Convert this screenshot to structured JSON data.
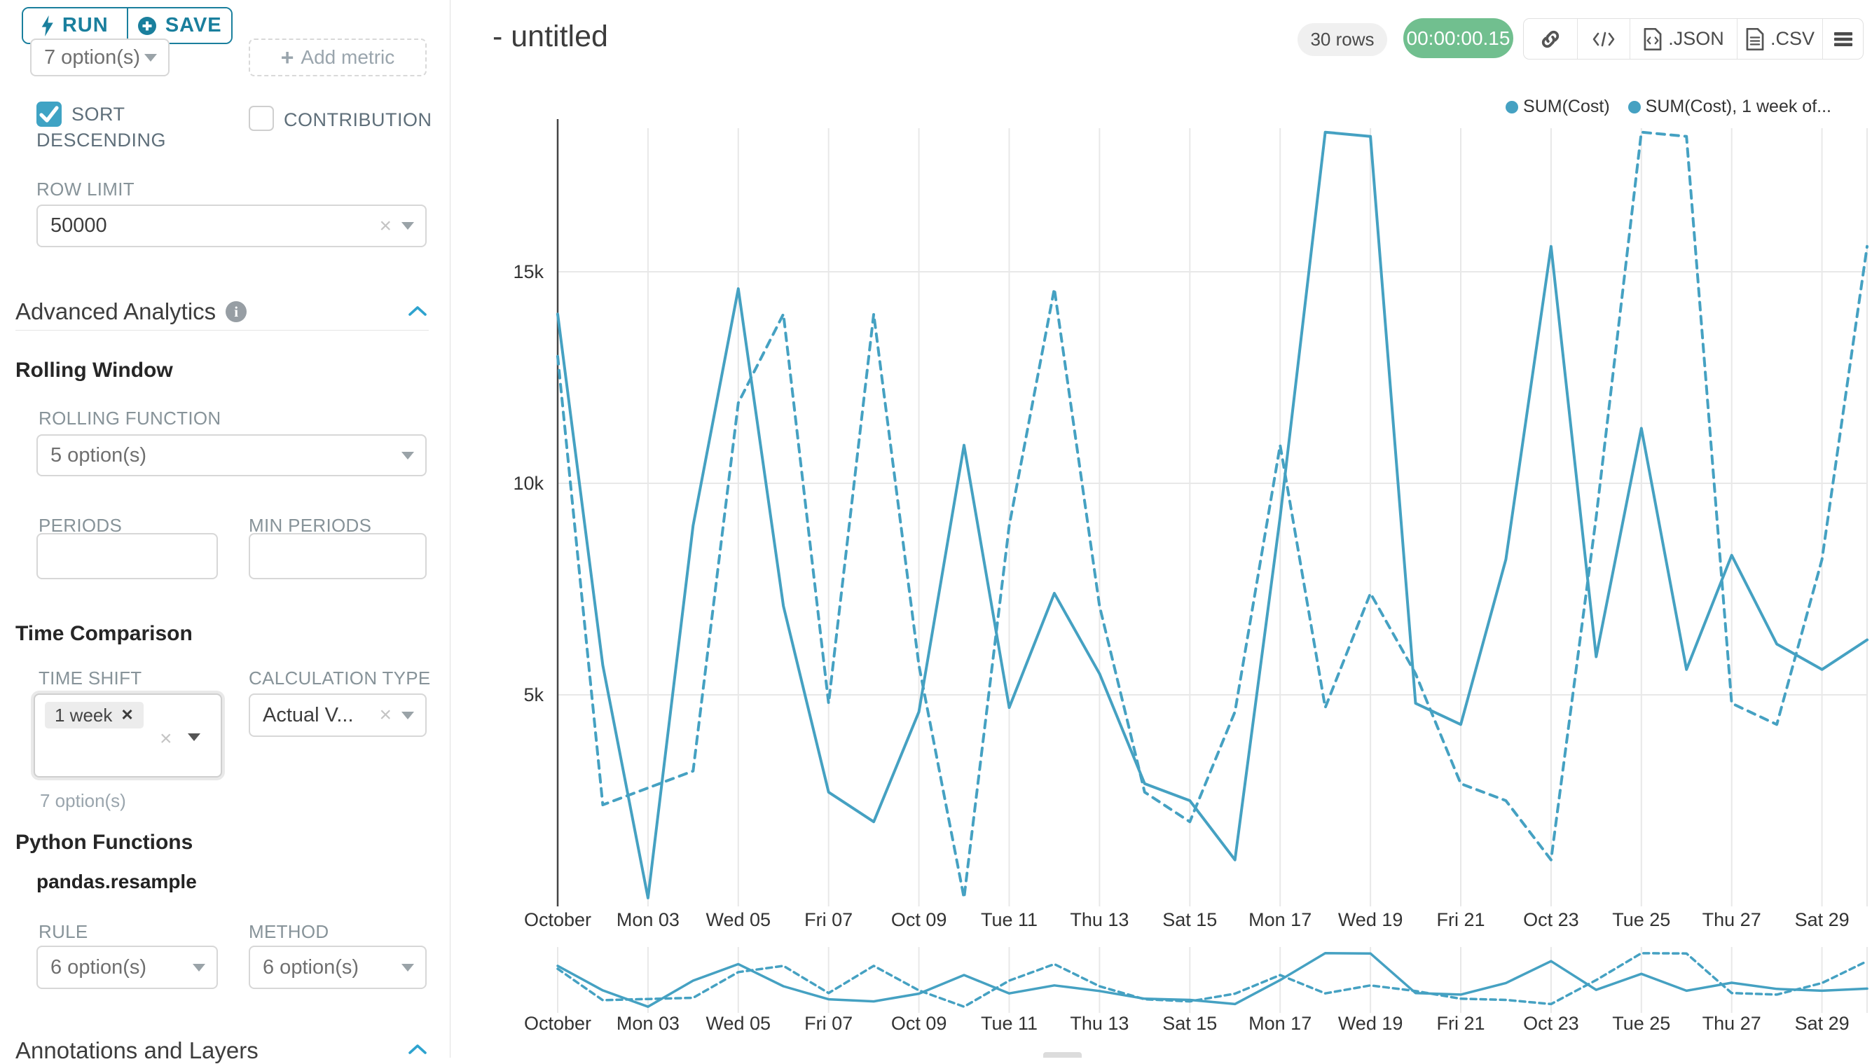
{
  "panel": {
    "run_label": "RUN",
    "save_label": "SAVE",
    "metric_value": "7 option(s)",
    "add_metric_label": "Add metric",
    "sort_label_line1": "SORT",
    "sort_label_line2": "DESCENDING",
    "contribution_label": "CONTRIBUTION",
    "row_limit_label": "ROW LIMIT",
    "row_limit_value": "50000",
    "advanced_analytics_title": "Advanced Analytics",
    "rolling_window_title": "Rolling Window",
    "rolling_function_label": "ROLLING FUNCTION",
    "rolling_function_value": "5 option(s)",
    "periods_label": "PERIODS",
    "min_periods_label": "MIN PERIODS",
    "time_comparison_title": "Time Comparison",
    "time_shift_label": "TIME SHIFT",
    "time_shift_tag": "1 week",
    "time_shift_helper": "7 option(s)",
    "calculation_type_label": "CALCULATION TYPE",
    "calculation_type_value": "Actual V...",
    "python_functions_title": "Python Functions",
    "resample_label": "pandas.resample",
    "rule_label": "RULE",
    "rule_value": "6 option(s)",
    "method_label": "METHOD",
    "method_value": "6 option(s)",
    "annotations_title": "Annotations and Layers"
  },
  "header": {
    "title": "- untitled",
    "rows_badge": "30 rows",
    "timer": "00:00:00.15",
    "export_json": ".JSON",
    "export_csv": ".CSV"
  },
  "legend": [
    {
      "label": "SUM(Cost)"
    },
    {
      "label": "SUM(Cost), 1 week of..."
    }
  ],
  "colors": {
    "accent": "#1a7f9d",
    "line": "#45a1c2",
    "timer_green": "#71bf8f",
    "checkbox": "#3fa3c4",
    "chevron": "#2ea3cf",
    "grid": "#e8e8e8",
    "axis": "#454545"
  },
  "chart_data": {
    "type": "line",
    "title": "- untitled",
    "x_tick_labels": [
      "October",
      "Mon 03",
      "Wed 05",
      "Fri 07",
      "Oct 09",
      "Tue 11",
      "Thu 13",
      "Sat 15",
      "Mon 17",
      "Wed 19",
      "Fri 21",
      "Oct 23",
      "Tue 25",
      "Thu 27",
      "Sat 29"
    ],
    "y_tick_labels": [
      "5k",
      "10k",
      "15k"
    ],
    "y_tick_values": [
      5,
      10,
      15
    ],
    "ylim": [
      0,
      18.4
    ],
    "unit": "thousands",
    "grid": true,
    "legend_position": "top-right",
    "series": [
      {
        "name": "SUM(Cost)",
        "style": "solid",
        "values": [
          14.0,
          5.7,
          0.2,
          9.0,
          14.6,
          7.1,
          2.7,
          2.0,
          4.6,
          10.9,
          4.7,
          7.4,
          5.5,
          2.9,
          2.5,
          1.1,
          9.2,
          18.3,
          18.2,
          4.8,
          4.3,
          8.2,
          15.6,
          5.9,
          11.3,
          5.6,
          8.3,
          6.2,
          5.6,
          6.3
        ]
      },
      {
        "name": "SUM(Cost), 1 week offset",
        "style": "dashed",
        "values": [
          13.0,
          2.4,
          2.8,
          3.2,
          11.9,
          14.0,
          4.8,
          14.0,
          5.7,
          0.2,
          9.0,
          14.6,
          7.1,
          2.7,
          2.0,
          4.6,
          10.9,
          4.7,
          7.4,
          5.5,
          2.9,
          2.5,
          1.1,
          9.2,
          18.3,
          18.2,
          4.8,
          4.3,
          8.2,
          15.6
        ]
      }
    ]
  }
}
